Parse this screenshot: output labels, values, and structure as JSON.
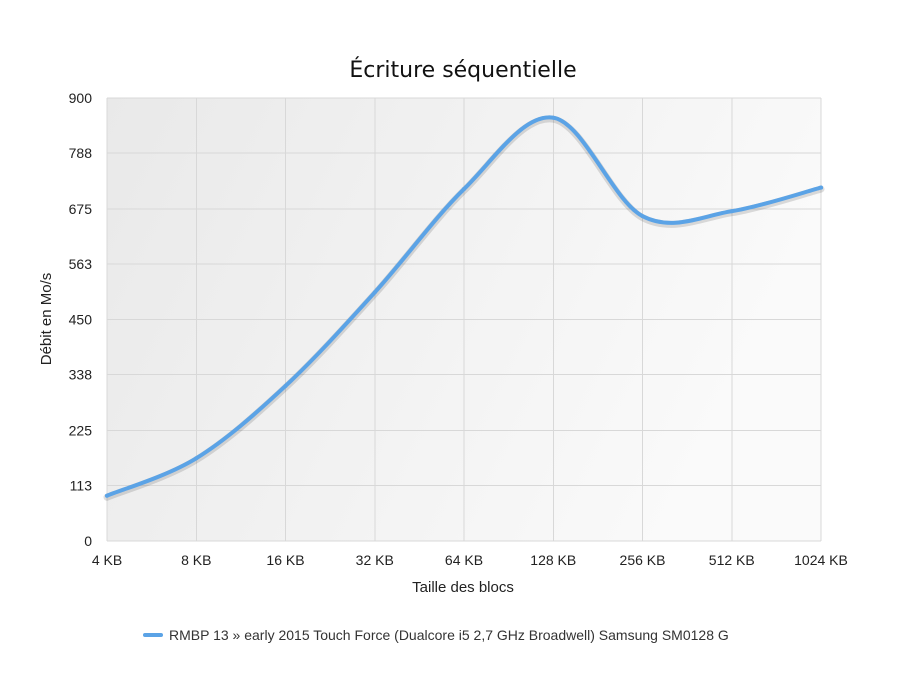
{
  "chart_data": {
    "type": "line",
    "title": "Écriture séquentielle",
    "xlabel": "Taille des blocs",
    "ylabel": "Débit en Mo/s",
    "categories": [
      "4 KB",
      "8 KB",
      "16 KB",
      "32 KB",
      "64 KB",
      "128 KB",
      "256 KB",
      "512 KB",
      "1024 KB"
    ],
    "yticks": [
      0,
      113,
      225,
      338,
      450,
      563,
      675,
      788,
      900
    ],
    "ylim": [
      0,
      900
    ],
    "grid": true,
    "legend_position": "bottom",
    "series": [
      {
        "name": "RMBP 13 » early 2015 Touch Force (Dualcore i5 2,7 GHz Broadwell) Samsung SM0128 G",
        "color": "#5ba3e6",
        "values": [
          92,
          168,
          315,
          505,
          715,
          860,
          660,
          670,
          718
        ]
      }
    ]
  }
}
